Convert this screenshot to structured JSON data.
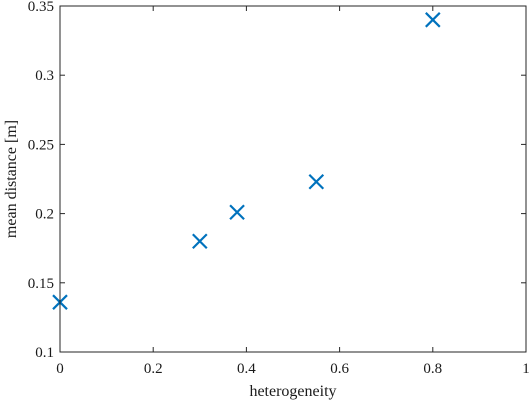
{
  "chart_data": {
    "type": "scatter",
    "title": "",
    "xlabel": "heterogeneity",
    "ylabel": "mean distance [m]",
    "xlim": [
      0,
      1
    ],
    "ylim": [
      0.1,
      0.35
    ],
    "xticks": [
      0,
      0.2,
      0.4,
      0.6,
      0.8,
      1
    ],
    "xtick_labels": [
      "0",
      "0.2",
      "0.4",
      "0.6",
      "0.8",
      "1"
    ],
    "yticks": [
      0.1,
      0.15,
      0.2,
      0.25,
      0.3,
      0.35
    ],
    "ytick_labels": [
      "0.1",
      "0.15",
      "0.2",
      "0.25",
      "0.3",
      "0.35"
    ],
    "grid": false,
    "marker": "x",
    "color": "#0072bd",
    "series": [
      {
        "points": [
          {
            "x": 0.0,
            "y": 0.136
          },
          {
            "x": 0.3,
            "y": 0.18
          },
          {
            "x": 0.38,
            "y": 0.201
          },
          {
            "x": 0.55,
            "y": 0.223
          },
          {
            "x": 0.8,
            "y": 0.34
          }
        ]
      }
    ]
  }
}
